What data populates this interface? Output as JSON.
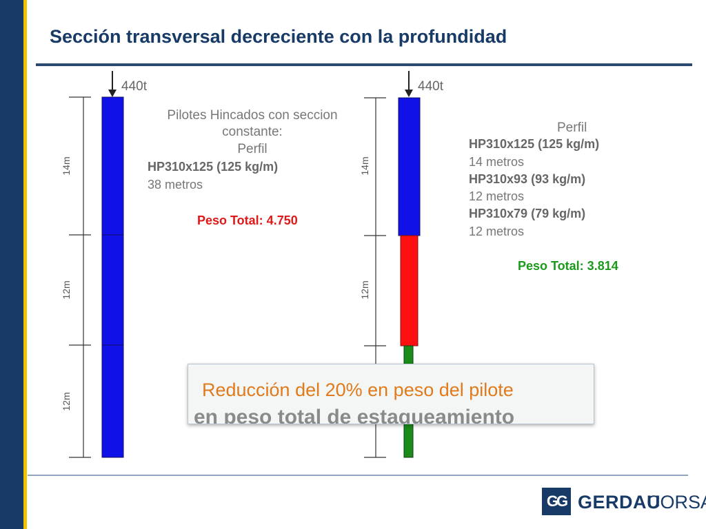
{
  "slide": {
    "title": "Sección transversal decreciente con la profundidad"
  },
  "colors": {
    "accent_navy": "#173a66",
    "accent_yellow": "#f2c300",
    "pile_blue": "#1010e8",
    "pile_red": "#ff1010",
    "pile_green": "#1a8a1a",
    "total_red": "#e01818",
    "total_green": "#1a9a1a",
    "callout_text": "#e07a1a"
  },
  "left_pile": {
    "load": "440t",
    "segment_labels": [
      "14m",
      "12m",
      "12m"
    ],
    "note_lines": [
      "Pilotes Hincados con seccion",
      "constante:",
      "Perfil"
    ],
    "profile": "HP310x125 (125 kg/m)",
    "length": "38 metros",
    "total": "Peso Total: 4.750"
  },
  "right_pile": {
    "load": "440t",
    "segment_labels": [
      "14m",
      "12m"
    ],
    "perfil_label": "Perfil",
    "profiles": [
      {
        "name": "HP310x125 (125 kg/m)",
        "length": "14 metros"
      },
      {
        "name": "HP310x93 (93 kg/m)",
        "length": "12 metros"
      },
      {
        "name": "HP310x79 (79 kg/m)",
        "length": "12 metros"
      }
    ],
    "total": "Peso Total: 3.814"
  },
  "callout": {
    "main": "Reducción del 20% en peso del pilote",
    "ghost": "en peso total de estaqueamiento"
  },
  "logo": {
    "word1": "GERDAU",
    "word2": "CORSA",
    "mark": "GG"
  }
}
